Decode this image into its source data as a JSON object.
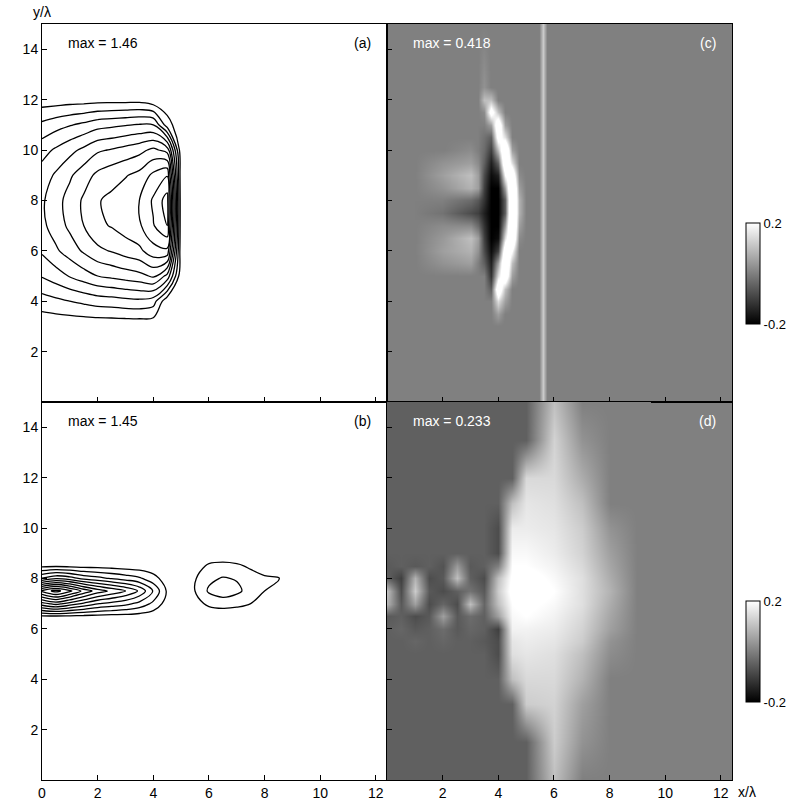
{
  "chart_data": [
    {
      "type": "contour",
      "panel": "(a)",
      "annotation": "max = 1.46",
      "y_label": "y/λ",
      "color": "#000000",
      "xlim": [
        0,
        12.4
      ],
      "ylim": [
        0,
        15
      ],
      "xticks": [
        0,
        2,
        4,
        6,
        8,
        10,
        12
      ],
      "yticks": [
        2,
        4,
        6,
        8,
        10,
        12,
        14
      ],
      "tick_labels": "y",
      "levels": [
        0.1,
        0.23,
        0.36,
        0.49,
        0.62,
        0.75,
        0.88,
        1.01,
        1.14,
        1.27,
        1.4
      ],
      "x": [
        0,
        0.5,
        1,
        1.5,
        2,
        2.5,
        3,
        3.5,
        4,
        4.5,
        5,
        5.5,
        6
      ],
      "y": [
        2,
        3,
        4,
        5,
        6,
        7,
        8,
        9,
        10,
        11,
        12,
        13
      ],
      "z": [
        [
          0,
          0,
          0,
          0,
          0,
          0,
          0,
          0,
          0,
          0,
          0,
          0,
          0
        ],
        [
          0,
          0,
          0,
          0,
          0,
          0,
          0,
          0,
          0,
          0,
          0,
          0,
          0
        ],
        [
          0.17,
          0.2,
          0.23,
          0.26,
          0.29,
          0.3,
          0.32,
          0.33,
          0.29,
          0,
          0,
          0,
          0
        ],
        [
          0.37,
          0.43,
          0.5,
          0.56,
          0.62,
          0.65,
          0.68,
          0.71,
          0.77,
          0.58,
          0,
          0,
          0
        ],
        [
          0.51,
          0.6,
          0.68,
          0.77,
          0.85,
          0.89,
          0.94,
          0.98,
          1.09,
          1.11,
          0,
          0,
          0
        ],
        [
          0.59,
          0.68,
          0.78,
          0.88,
          0.98,
          1.02,
          1.07,
          1.12,
          1.26,
          1.4,
          0,
          0,
          0
        ],
        [
          0.6,
          0.7,
          0.8,
          0.9,
          1.0,
          1.04,
          1.09,
          1.14,
          1.29,
          1.46,
          0,
          0,
          0
        ],
        [
          0.55,
          0.64,
          0.73,
          0.82,
          0.91,
          0.96,
          1.0,
          1.05,
          1.17,
          1.26,
          0,
          0,
          0
        ],
        [
          0.44,
          0.51,
          0.58,
          0.65,
          0.73,
          0.76,
          0.8,
          0.84,
          0.91,
          0.83,
          0,
          0,
          0
        ],
        [
          0.26,
          0.31,
          0.35,
          0.39,
          0.44,
          0.46,
          0.48,
          0.5,
          0.49,
          0.16,
          0,
          0,
          0
        ],
        [
          0.03,
          0.03,
          0.04,
          0.04,
          0.05,
          0.05,
          0.05,
          0.05,
          0,
          0,
          0,
          0,
          0
        ],
        [
          0,
          0,
          0,
          0,
          0,
          0,
          0,
          0,
          0,
          0,
          0,
          0,
          0
        ]
      ]
    },
    {
      "type": "contour",
      "panel": "(b)",
      "annotation": "max = 1.45",
      "color": "#000000",
      "xlim": [
        0,
        12.4
      ],
      "ylim": [
        0,
        15
      ],
      "xticks": [
        0,
        2,
        4,
        6,
        8,
        10,
        12
      ],
      "yticks": [
        2,
        4,
        6,
        8,
        10,
        12,
        14
      ],
      "tick_labels": true,
      "levels": [
        0.1,
        0.23,
        0.36,
        0.49,
        0.62,
        0.75,
        0.88,
        1.01,
        1.14,
        1.27,
        1.4
      ],
      "x": [
        0,
        0.5,
        1,
        1.5,
        2,
        2.5,
        3,
        3.5,
        4,
        4.5,
        5,
        5.5,
        6,
        6.5,
        7,
        7.5,
        8,
        8.5,
        9
      ],
      "y": [
        6,
        6.5,
        7,
        7.5,
        8,
        8.5,
        9
      ],
      "z": [
        [
          0,
          0,
          0,
          0,
          0,
          0,
          0,
          0,
          0,
          0,
          0,
          0,
          0,
          0,
          0,
          0,
          0,
          0,
          0
        ],
        [
          0.08,
          0.09,
          0.08,
          0.07,
          0.06,
          0.05,
          0.05,
          0.04,
          0.02,
          0,
          0,
          0,
          0,
          0,
          0,
          0,
          0,
          0,
          0
        ],
        [
          0.7,
          0.8,
          0.7,
          0.6,
          0.5,
          0.45,
          0.4,
          0.32,
          0.2,
          0.04,
          0,
          0.05,
          0.13,
          0.16,
          0.14,
          0.1,
          0.03,
          0,
          0
        ],
        [
          1.3,
          1.45,
          1.3,
          1.1,
          0.95,
          0.85,
          0.75,
          0.6,
          0.35,
          0.08,
          0,
          0.1,
          0.25,
          0.3,
          0.26,
          0.18,
          0.1,
          0.05,
          0
        ],
        [
          0.5,
          0.6,
          0.55,
          0.45,
          0.4,
          0.35,
          0.3,
          0.25,
          0.15,
          0.03,
          0,
          0.09,
          0.2,
          0.24,
          0.22,
          0.15,
          0.12,
          0.11,
          0
        ],
        [
          0.06,
          0.07,
          0.06,
          0.05,
          0.05,
          0.04,
          0.03,
          0.02,
          0.01,
          0,
          0,
          0.04,
          0.12,
          0.14,
          0.12,
          0.08,
          0.03,
          0,
          0
        ],
        [
          0,
          0,
          0,
          0,
          0,
          0,
          0,
          0,
          0,
          0,
          0,
          0,
          0,
          0,
          0,
          0,
          0,
          0,
          0
        ]
      ]
    },
    {
      "type": "heatmap",
      "panel": "(c)",
      "annotation": "max = 0.418",
      "xlim": [
        0,
        12.4
      ],
      "ylim": [
        0,
        15
      ],
      "xticks": [
        0,
        2,
        4,
        6,
        8,
        10,
        12
      ],
      "yticks": [
        2,
        4,
        6,
        8,
        10,
        12,
        14
      ],
      "tick_labels": false,
      "colorbar": {
        "range": [
          -0.2,
          0.2
        ],
        "ticks": [
          -0.2,
          0.2
        ]
      },
      "x": [
        1,
        2,
        3,
        3.25,
        3.5,
        3.75,
        4,
        4.25,
        4.5,
        4.75,
        5,
        5.45,
        5.6,
        5.75
      ],
      "y": [
        0,
        3,
        3.5,
        4,
        4.5,
        5,
        5.5,
        6,
        6.5,
        7,
        7.5,
        8,
        8.5,
        9,
        9.5,
        10,
        10.5,
        11,
        11.5,
        12,
        12.5,
        15
      ],
      "z": [
        [
          0,
          0,
          0,
          0,
          0,
          0,
          0,
          0,
          0,
          0,
          0,
          0,
          0.12,
          0
        ],
        [
          0,
          0,
          0,
          0,
          0,
          0,
          0,
          0,
          0,
          0,
          0,
          0,
          0.12,
          0
        ],
        [
          0,
          0,
          0,
          0,
          0,
          0,
          0.05,
          0,
          0,
          0,
          0,
          0,
          0.12,
          0
        ],
        [
          0,
          0,
          0,
          0,
          0,
          0,
          0.15,
          0.05,
          0,
          0,
          0,
          0,
          0.12,
          0
        ],
        [
          0,
          0,
          0,
          0,
          0,
          -0.05,
          0.3,
          0.1,
          0,
          0,
          0,
          0,
          0.12,
          0
        ],
        [
          0,
          0,
          0,
          0,
          0,
          -0.12,
          0.15,
          0.3,
          0.05,
          0,
          0,
          0,
          0.12,
          0
        ],
        [
          0,
          0.03,
          0.05,
          0,
          -0.05,
          -0.15,
          0.05,
          0.35,
          0.1,
          0,
          0,
          0,
          0.12,
          0
        ],
        [
          0,
          0.05,
          0.08,
          0.03,
          -0.08,
          -0.18,
          -0.1,
          0.3,
          0.2,
          0,
          0,
          0,
          0.12,
          0
        ],
        [
          0,
          0.04,
          0.1,
          0.05,
          -0.1,
          -0.2,
          -0.18,
          0.15,
          0.35,
          0.02,
          0,
          0,
          0.12,
          0
        ],
        [
          0,
          0.02,
          0.02,
          -0.03,
          -0.12,
          -0.2,
          -0.2,
          0.05,
          0.4,
          0.05,
          0,
          0,
          0.12,
          0
        ],
        [
          0,
          -0.02,
          -0.08,
          -0.1,
          -0.15,
          -0.2,
          -0.2,
          -0.05,
          0.418,
          0.08,
          0,
          0,
          0.12,
          0
        ],
        [
          0,
          0,
          -0.03,
          -0.06,
          -0.12,
          -0.2,
          -0.2,
          -0.05,
          0.41,
          0.08,
          0,
          0,
          0.12,
          0
        ],
        [
          0,
          0.03,
          0.08,
          0.05,
          -0.1,
          -0.2,
          -0.2,
          0.05,
          0.4,
          0.05,
          0,
          0,
          0.12,
          0
        ],
        [
          0,
          0.05,
          0.1,
          0.05,
          -0.08,
          -0.18,
          -0.15,
          0.2,
          0.3,
          0.02,
          0,
          0,
          0.12,
          0
        ],
        [
          0,
          0.03,
          0.05,
          0.02,
          -0.05,
          -0.15,
          -0.05,
          0.33,
          0.15,
          0,
          0,
          0,
          0.12,
          0
        ],
        [
          0,
          0,
          0.02,
          0,
          -0.03,
          -0.1,
          0.1,
          0.35,
          0.05,
          0,
          0,
          0,
          0.12,
          0
        ],
        [
          0,
          0,
          0,
          0,
          -0.02,
          -0.05,
          0.25,
          0.15,
          0,
          0,
          0,
          0,
          0.12,
          0
        ],
        [
          0,
          0,
          0,
          0,
          0,
          0.05,
          0.3,
          0.05,
          0,
          0,
          0,
          0,
          0.12,
          0
        ],
        [
          0,
          0,
          0,
          0,
          0.02,
          0.25,
          0.1,
          0,
          0,
          0,
          0,
          0,
          0.12,
          0
        ],
        [
          0,
          0,
          0,
          0,
          0.1,
          0.1,
          0,
          0,
          0,
          0,
          0,
          0,
          0.12,
          0
        ],
        [
          0,
          0,
          0,
          0,
          0.03,
          0,
          0,
          0,
          0,
          0,
          0,
          0,
          0.12,
          0
        ],
        [
          0,
          0,
          0,
          0,
          0,
          0,
          0,
          0,
          0,
          0,
          0,
          0,
          0.12,
          0
        ]
      ]
    },
    {
      "type": "heatmap",
      "panel": "(d)",
      "annotation": "max = 0.233",
      "x_label": "x/λ",
      "xlim": [
        0,
        12.4
      ],
      "ylim": [
        0,
        15
      ],
      "xticks": [
        2,
        4,
        6,
        8,
        10,
        12
      ],
      "yticks": [
        2,
        4,
        6,
        8,
        10,
        12,
        14
      ],
      "tick_labels": "x",
      "colorbar": {
        "range": [
          -0.2,
          0.2
        ],
        "ticks": [
          -0.2,
          0.2
        ]
      },
      "x": [
        0,
        0.5,
        1,
        1.5,
        2,
        2.5,
        3,
        3.5,
        4,
        4.5,
        5,
        6,
        7,
        8,
        9
      ],
      "y": [
        0,
        1.5,
        3,
        4,
        5,
        5.5,
        6,
        6.5,
        7,
        7.5,
        8,
        8.5,
        9,
        10,
        11,
        12,
        13.5,
        15
      ],
      "z": [
        [
          -0.05,
          -0.05,
          -0.05,
          -0.05,
          -0.05,
          -0.05,
          -0.05,
          -0.05,
          -0.05,
          -0.05,
          -0.05,
          0.1,
          0,
          0,
          0
        ],
        [
          -0.05,
          -0.05,
          -0.05,
          -0.05,
          -0.05,
          -0.05,
          -0.05,
          -0.05,
          -0.05,
          -0.05,
          -0.05,
          0.12,
          0.03,
          0,
          0
        ],
        [
          -0.05,
          -0.05,
          -0.05,
          -0.05,
          -0.05,
          -0.05,
          -0.05,
          -0.05,
          -0.05,
          -0.05,
          0.12,
          0.13,
          0.05,
          0,
          0
        ],
        [
          -0.05,
          -0.05,
          -0.05,
          -0.05,
          -0.05,
          -0.05,
          -0.05,
          -0.05,
          -0.05,
          0.1,
          0.14,
          0.14,
          0.08,
          0,
          0
        ],
        [
          -0.05,
          -0.05,
          -0.05,
          -0.05,
          -0.05,
          -0.05,
          -0.05,
          -0.05,
          -0.08,
          0.15,
          0.16,
          0.15,
          0.1,
          0.02,
          0
        ],
        [
          -0.05,
          -0.05,
          -0.04,
          -0.05,
          -0.04,
          -0.05,
          -0.05,
          -0.06,
          -0.08,
          0.16,
          0.17,
          0.16,
          0.12,
          0.03,
          0
        ],
        [
          -0.05,
          -0.04,
          -0.06,
          -0.05,
          -0.03,
          -0.06,
          -0.04,
          -0.05,
          -0.1,
          0.18,
          0.18,
          0.17,
          0.13,
          0.05,
          0
        ],
        [
          -0.06,
          -0.05,
          -0.08,
          -0.06,
          0.05,
          -0.06,
          -0.03,
          -0.05,
          0.05,
          0.19,
          0.2,
          0.18,
          0.14,
          0.06,
          0
        ],
        [
          0.08,
          -0.06,
          0.05,
          -0.08,
          -0.04,
          -0.08,
          0.1,
          -0.04,
          0.1,
          0.2,
          0.21,
          0.19,
          0.15,
          0.07,
          0
        ],
        [
          0.1,
          -0.08,
          0.12,
          -0.06,
          -0.08,
          -0.05,
          -0.02,
          -0.06,
          0.12,
          0.22,
          0.233,
          0.2,
          0.15,
          0.08,
          0
        ],
        [
          -0.05,
          -0.1,
          0.08,
          -0.08,
          -0.06,
          0.1,
          -0.05,
          -0.08,
          0.1,
          0.21,
          0.22,
          0.19,
          0.15,
          0.07,
          0
        ],
        [
          -0.06,
          -0.05,
          -0.06,
          -0.05,
          -0.07,
          0.04,
          -0.06,
          -0.05,
          0,
          0.2,
          0.2,
          0.18,
          0.14,
          0.06,
          0
        ],
        [
          -0.05,
          -0.05,
          -0.05,
          -0.05,
          -0.05,
          -0.05,
          -0.05,
          -0.05,
          -0.08,
          0.19,
          0.19,
          0.17,
          0.13,
          0.05,
          0
        ],
        [
          -0.05,
          -0.05,
          -0.05,
          -0.05,
          -0.05,
          -0.05,
          -0.05,
          -0.05,
          -0.08,
          0.17,
          0.17,
          0.16,
          0.12,
          0.03,
          0
        ],
        [
          -0.05,
          -0.05,
          -0.05,
          -0.05,
          -0.05,
          -0.05,
          -0.05,
          -0.05,
          -0.05,
          0.1,
          0.16,
          0.15,
          0.1,
          0,
          0
        ],
        [
          -0.05,
          -0.05,
          -0.05,
          -0.05,
          -0.05,
          -0.05,
          -0.05,
          -0.05,
          -0.05,
          -0.05,
          0.14,
          0.14,
          0.07,
          0,
          0
        ],
        [
          -0.05,
          -0.05,
          -0.05,
          -0.05,
          -0.05,
          -0.05,
          -0.05,
          -0.05,
          -0.05,
          -0.05,
          -0.05,
          0.13,
          0.03,
          0,
          0
        ],
        [
          -0.05,
          -0.05,
          -0.05,
          -0.05,
          -0.05,
          -0.05,
          -0.05,
          -0.05,
          -0.05,
          -0.05,
          -0.05,
          0.1,
          0,
          0,
          0
        ]
      ]
    }
  ]
}
